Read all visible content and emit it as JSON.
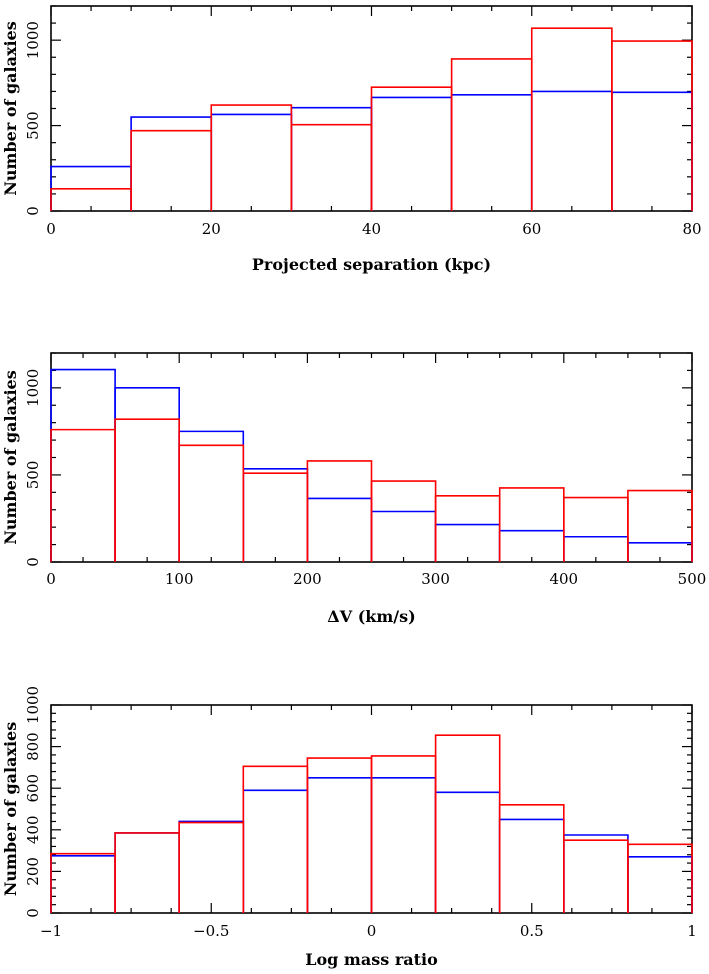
{
  "chart_data": [
    {
      "type": "bar",
      "style": "step histogram",
      "xlabel": "Projected separation (kpc)",
      "ylabel": "Number of galaxies",
      "xlim": [
        0,
        80
      ],
      "ylim": [
        0,
        1200
      ],
      "xticks": [
        0,
        20,
        40,
        60,
        80
      ],
      "yticks": [
        0,
        500,
        1000
      ],
      "bin_edges": [
        0,
        10,
        20,
        30,
        40,
        50,
        60,
        70,
        80
      ],
      "series": [
        {
          "color": "#0000ff",
          "values": [
            260,
            550,
            565,
            605,
            665,
            680,
            700,
            695
          ]
        },
        {
          "color": "#ff0000",
          "values": [
            130,
            470,
            620,
            505,
            725,
            890,
            1070,
            995
          ]
        }
      ]
    },
    {
      "type": "bar",
      "style": "step histogram",
      "xlabel": "ΔV (km/s)",
      "ylabel": "Number of galaxies",
      "xlim": [
        0,
        500
      ],
      "ylim": [
        0,
        1200
      ],
      "xticks": [
        0,
        100,
        200,
        300,
        400,
        500
      ],
      "yticks": [
        0,
        500,
        1000
      ],
      "bin_edges": [
        0,
        50,
        100,
        150,
        200,
        250,
        300,
        350,
        400,
        450,
        500
      ],
      "series": [
        {
          "color": "#0000ff",
          "values": [
            1105,
            1000,
            750,
            535,
            365,
            290,
            215,
            180,
            145,
            110
          ]
        },
        {
          "color": "#ff0000",
          "values": [
            760,
            820,
            670,
            510,
            580,
            465,
            380,
            425,
            370,
            410
          ]
        }
      ]
    },
    {
      "type": "bar",
      "style": "step histogram",
      "xlabel": "Log mass ratio",
      "ylabel": "Number of galaxies",
      "xlim": [
        -1,
        1
      ],
      "ylim": [
        0,
        1000
      ],
      "xticks": [
        -1,
        -0.5,
        0,
        0.5,
        1
      ],
      "xtick_labels": [
        "−1",
        "−0.5",
        "0",
        "0.5",
        "1"
      ],
      "yticks": [
        0,
        200,
        400,
        600,
        800,
        1000
      ],
      "bin_edges": [
        -1,
        -0.8,
        -0.6,
        -0.4,
        -0.2,
        0,
        0.2,
        0.4,
        0.6,
        0.8,
        1
      ],
      "series": [
        {
          "color": "#0000ff",
          "values": [
            275,
            385,
            440,
            590,
            650,
            650,
            580,
            450,
            375,
            270
          ]
        },
        {
          "color": "#ff0000",
          "values": [
            285,
            385,
            435,
            705,
            745,
            755,
            855,
            520,
            350,
            330
          ]
        }
      ]
    }
  ]
}
